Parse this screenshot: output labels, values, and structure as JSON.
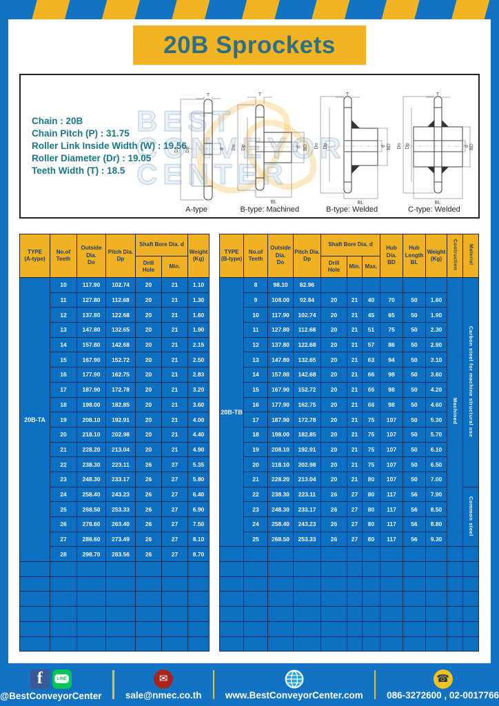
{
  "title": "20B Sprockets",
  "specs": {
    "lines": [
      "Chain : 20B",
      "Chain Pitch (P) : 31.75",
      "Roller Link Inside Width (W) : 19.56",
      "Roller Diameter (Dr) : 19.05",
      "Teeth Width (T) : 18.5"
    ]
  },
  "diagrams": {
    "captions": [
      "A-type",
      "B-type: Machined",
      "B-type: Welded",
      "C-type: Welded"
    ],
    "dims": {
      "T": "T",
      "Do": "Do",
      "Dp": "Dp",
      "d": "d",
      "BD": "BD",
      "BL": "BL"
    }
  },
  "watermark": {
    "lines": [
      "BEST",
      "CONVEYOR",
      "CENTER"
    ]
  },
  "tables": {
    "left": {
      "headers": {
        "type": "TYPE\n(A-type)",
        "teeth": "No.of\nTeeth",
        "outside": "Outside\nDia.\nDo",
        "pitch": "Pitch Dia.\nDp",
        "shaft": "Shaft Bore Dia. d",
        "drill": "Drill Hole",
        "min": "Min.",
        "weight": "Weight\n(Kg)"
      },
      "type_label": "20B-TA",
      "rows": [
        [
          "10",
          "117.90",
          "102.74",
          "20",
          "21",
          "1.10"
        ],
        [
          "11",
          "127.80",
          "112.68",
          "20",
          "21",
          "1.30"
        ],
        [
          "12",
          "137.80",
          "122.68",
          "20",
          "21",
          "1.60"
        ],
        [
          "13",
          "147.80",
          "132.65",
          "20",
          "21",
          "1.90"
        ],
        [
          "14",
          "157.80",
          "142.68",
          "20",
          "21",
          "2.15"
        ],
        [
          "15",
          "167.90",
          "152.72",
          "20",
          "21",
          "2.50"
        ],
        [
          "16",
          "177.90",
          "162.75",
          "20",
          "21",
          "2.83"
        ],
        [
          "17",
          "187.90",
          "172.78",
          "20",
          "21",
          "3.20"
        ],
        [
          "18",
          "198.00",
          "182.85",
          "20",
          "21",
          "3.60"
        ],
        [
          "19",
          "208.10",
          "192.91",
          "20",
          "21",
          "4.00"
        ],
        [
          "20",
          "218.10",
          "202.98",
          "20",
          "21",
          "4.40"
        ],
        [
          "21",
          "228.20",
          "213.04",
          "20",
          "21",
          "4.90"
        ],
        [
          "22",
          "238.30",
          "223.11",
          "26",
          "27",
          "5.35"
        ],
        [
          "23",
          "248.30",
          "233.17",
          "26",
          "27",
          "5.80"
        ],
        [
          "24",
          "258.40",
          "243.23",
          "26",
          "27",
          "6.40"
        ],
        [
          "25",
          "268.50",
          "253.33",
          "26",
          "27",
          "6.90"
        ],
        [
          "26",
          "278.60",
          "263.40",
          "26",
          "27",
          "7.50"
        ],
        [
          "27",
          "288.60",
          "273.49",
          "26",
          "27",
          "8.10"
        ],
        [
          "28",
          "298.70",
          "283.56",
          "26",
          "27",
          "8.70"
        ]
      ],
      "empty_rows": 6
    },
    "right": {
      "headers": {
        "type": "TYPE\n(B-type)",
        "teeth": "No.of\nTeeth",
        "outside": "Outside\nDia.\nDo",
        "pitch": "Pitch Dia.\nDp",
        "shaft": "Shaft Bore Dia. d",
        "drill": "Drill Hole",
        "min": "Min.",
        "max": "Max.",
        "hub_dia": "Hub Dia.\nBD",
        "hub_len": "Hub\nLength\nBL",
        "weight": "Weight\n(Kg)",
        "construction": "Contruction",
        "material": "Material"
      },
      "type_label": "20B-TB",
      "construction_value": "Machined",
      "materials": [
        {
          "label": "Carbon steel for machine structural use",
          "rows": 14
        },
        {
          "label": "Common steel",
          "rows": 4
        }
      ],
      "rows": [
        [
          "8",
          "98.10",
          "82.96",
          "",
          "",
          "",
          "",
          "",
          ""
        ],
        [
          "9",
          "108.00",
          "92.84",
          "20",
          "21",
          "40",
          "70",
          "50",
          "1.60"
        ],
        [
          "10",
          "117.90",
          "102.74",
          "20",
          "21",
          "45",
          "65",
          "50",
          "1.90"
        ],
        [
          "11",
          "127.80",
          "112.68",
          "20",
          "21",
          "51",
          "75",
          "50",
          "2.30"
        ],
        [
          "12",
          "137.80",
          "122.68",
          "20",
          "21",
          "57",
          "86",
          "50",
          "2.90"
        ],
        [
          "13",
          "147.80",
          "132.65",
          "20",
          "21",
          "63",
          "94",
          "50",
          "3.10"
        ],
        [
          "14",
          "157.80",
          "142.68",
          "20",
          "21",
          "66",
          "98",
          "50",
          "3.60"
        ],
        [
          "15",
          "167.90",
          "152.72",
          "20",
          "21",
          "66",
          "98",
          "50",
          "4.20"
        ],
        [
          "16",
          "177.90",
          "162.75",
          "20",
          "21",
          "66",
          "98",
          "50",
          "4.60"
        ],
        [
          "17",
          "187.90",
          "172.78",
          "20",
          "21",
          "75",
          "107",
          "50",
          "5.30"
        ],
        [
          "18",
          "198.00",
          "182.85",
          "20",
          "21",
          "75",
          "107",
          "50",
          "5.70"
        ],
        [
          "19",
          "208.10",
          "192.91",
          "20",
          "21",
          "75",
          "107",
          "50",
          "6.10"
        ],
        [
          "20",
          "218.10",
          "202.98",
          "20",
          "21",
          "75",
          "107",
          "50",
          "6.50"
        ],
        [
          "21",
          "228.20",
          "213.04",
          "20",
          "21",
          "80",
          "107",
          "50",
          "7.00"
        ],
        [
          "22",
          "238.30",
          "223.11",
          "26",
          "27",
          "80",
          "117",
          "56",
          "7.90"
        ],
        [
          "23",
          "248.30",
          "233.17",
          "26",
          "27",
          "80",
          "117",
          "56",
          "8.50"
        ],
        [
          "24",
          "258.40",
          "243.23",
          "26",
          "27",
          "80",
          "117",
          "56",
          "8.80"
        ],
        [
          "25",
          "268.50",
          "253.33",
          "26",
          "27",
          "80",
          "117",
          "56",
          "9.30"
        ]
      ],
      "empty_rows": 7
    }
  },
  "footer": {
    "facebook_glyph": "f",
    "line_label": "LINE",
    "email_glyph": "✉",
    "phone_glyph": "☎",
    "sections": [
      {
        "label": "@BestConveyorCenter"
      },
      {
        "label": "sale@nmec.co.th"
      },
      {
        "label": "www.BestConveyorCenter.com"
      },
      {
        "label": "086-3272600 , 02-0017766"
      }
    ]
  },
  "colors": {
    "frame_blue": "#1373c2",
    "cell_blue": "#0d6fc2",
    "cell_border_navy": "#0a2c55",
    "accent_yellow": "#f2b422",
    "header_yellow": "#f0b124",
    "title_teal": "#2e6e87",
    "spec_teal": "#1b7489"
  }
}
